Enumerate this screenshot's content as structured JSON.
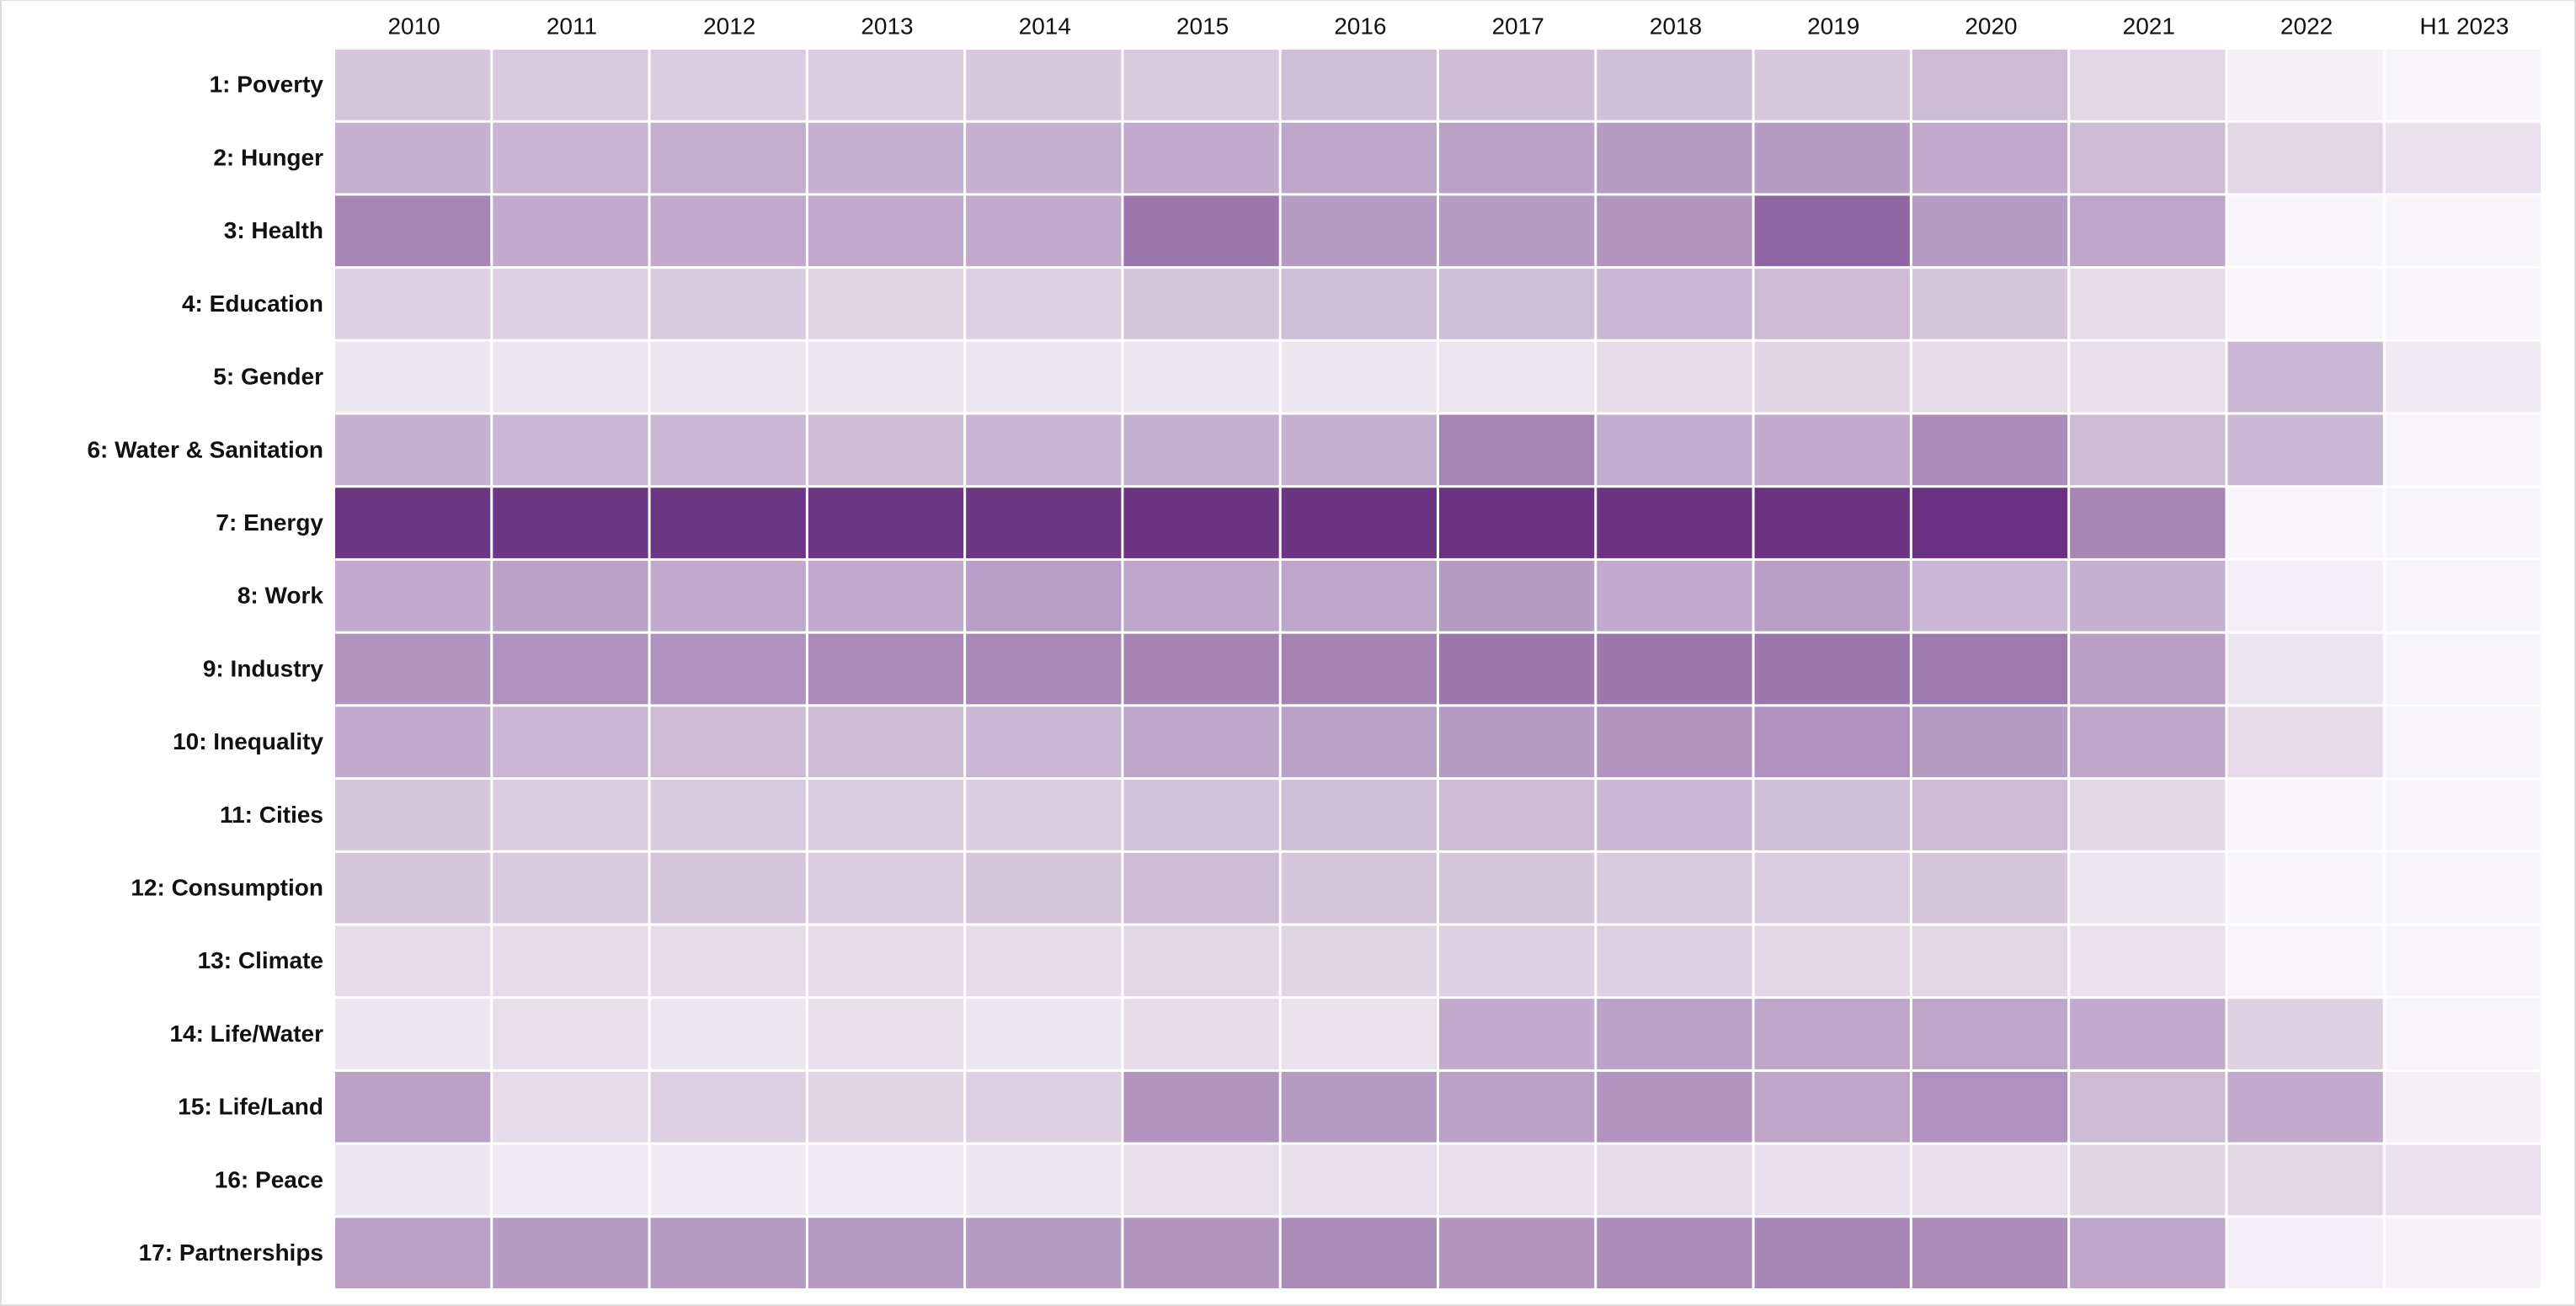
{
  "chart_data": {
    "type": "heatmap",
    "x": [
      "2010",
      "2011",
      "2012",
      "2013",
      "2014",
      "2015",
      "2016",
      "2017",
      "2018",
      "2019",
      "2020",
      "2021",
      "2022",
      "H1 2023"
    ],
    "categories": [
      "1: Poverty",
      "2: Hunger",
      "3: Health",
      "4: Education",
      "5: Gender",
      "6: Water & Sanitation",
      "7: Energy",
      "8: Work",
      "9: Industry",
      "10: Inequality",
      "11: Cities",
      "12: Consumption",
      "13: Climate",
      "14: Life/Water",
      "15: Life/Land",
      "16: Peace",
      "17: Partnerships"
    ],
    "values": [
      [
        25,
        23,
        22,
        22,
        24,
        23,
        28,
        29,
        28,
        24,
        30,
        17,
        5,
        3
      ],
      [
        35,
        33,
        36,
        35,
        35,
        38,
        40,
        42,
        45,
        45,
        38,
        30,
        17,
        12
      ],
      [
        55,
        38,
        38,
        38,
        38,
        62,
        45,
        45,
        48,
        70,
        45,
        40,
        3,
        3
      ],
      [
        20,
        20,
        23,
        18,
        20,
        25,
        28,
        28,
        32,
        30,
        25,
        15,
        3,
        3
      ],
      [
        10,
        10,
        10,
        10,
        10,
        10,
        10,
        10,
        15,
        18,
        15,
        13,
        32,
        8
      ],
      [
        35,
        32,
        32,
        30,
        33,
        35,
        35,
        55,
        37,
        38,
        52,
        30,
        32,
        3
      ],
      [
        92,
        92,
        92,
        92,
        92,
        93,
        93,
        94,
        94,
        94,
        95,
        55,
        3,
        3
      ],
      [
        38,
        42,
        38,
        38,
        43,
        40,
        40,
        45,
        38,
        43,
        32,
        35,
        6,
        3
      ],
      [
        48,
        50,
        50,
        52,
        54,
        56,
        56,
        62,
        62,
        62,
        60,
        43,
        10,
        3
      ],
      [
        38,
        32,
        30,
        30,
        32,
        40,
        42,
        45,
        48,
        50,
        45,
        40,
        15,
        3
      ],
      [
        25,
        22,
        23,
        22,
        22,
        27,
        28,
        30,
        32,
        28,
        30,
        17,
        3,
        3
      ],
      [
        25,
        23,
        25,
        22,
        25,
        30,
        25,
        25,
        23,
        22,
        25,
        10,
        3,
        3
      ],
      [
        15,
        15,
        15,
        15,
        15,
        17,
        18,
        20,
        20,
        17,
        17,
        12,
        3,
        3
      ],
      [
        10,
        13,
        10,
        13,
        10,
        15,
        12,
        38,
        42,
        40,
        40,
        38,
        20,
        3
      ],
      [
        42,
        15,
        20,
        18,
        20,
        48,
        45,
        42,
        48,
        40,
        50,
        30,
        38,
        5
      ],
      [
        10,
        8,
        8,
        8,
        10,
        13,
        13,
        13,
        15,
        13,
        13,
        18,
        17,
        12
      ],
      [
        42,
        45,
        45,
        45,
        45,
        48,
        52,
        48,
        52,
        55,
        52,
        40,
        6,
        4
      ]
    ],
    "zlim": [
      0,
      100
    ],
    "colors": [
      "#fcfbfd",
      "#60267a"
    ]
  }
}
